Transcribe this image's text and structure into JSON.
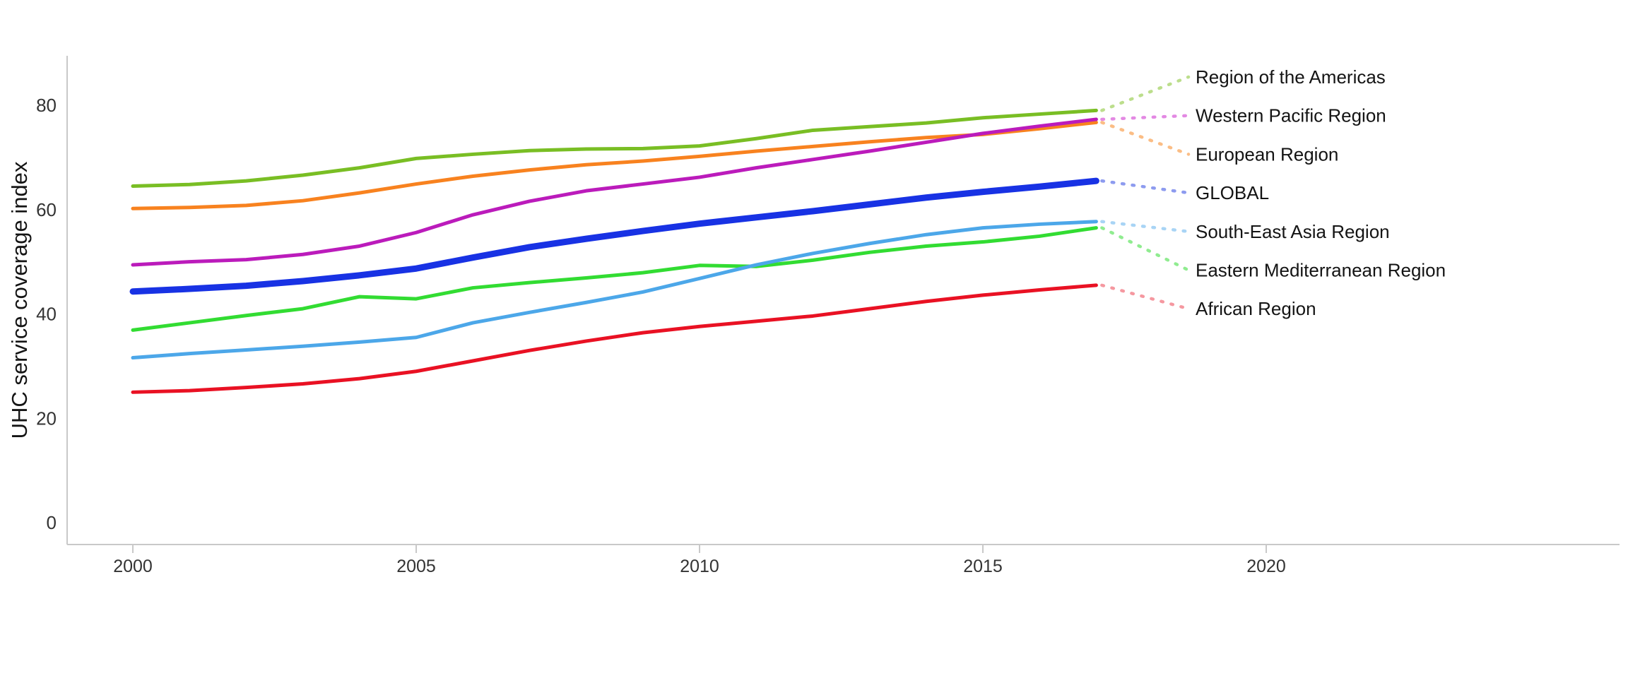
{
  "page": {
    "background": "#ffffff"
  },
  "chart_data": {
    "type": "line",
    "title": "",
    "xlabel": "",
    "ylabel": "UHC service coverage index",
    "x": [
      2000,
      2001,
      2002,
      2003,
      2004,
      2005,
      2006,
      2007,
      2008,
      2009,
      2010,
      2011,
      2012,
      2013,
      2014,
      2015,
      2016,
      2017
    ],
    "x_ticks": [
      2000,
      2005,
      2010,
      2015,
      2020
    ],
    "y_ticks": [
      0,
      20,
      40,
      60,
      80
    ],
    "xlim": [
      1999,
      2026
    ],
    "ylim": [
      0,
      88
    ],
    "grid": false,
    "legend_position": "right-edge-leader-labels",
    "axis_color": "#c9c9c9",
    "tick_label_color": "#333333",
    "series_label_color": "#141414",
    "series": [
      {
        "name": "Region of the Americas",
        "color": "#79be24",
        "leader_color": "#bcde8c",
        "line_width": 5,
        "values": [
          64.5,
          64.8,
          65.5,
          66.6,
          68.0,
          69.8,
          70.6,
          71.3,
          71.6,
          71.7,
          72.2,
          73.6,
          75.2,
          75.9,
          76.6,
          77.6,
          78.3,
          79.0
        ]
      },
      {
        "name": "Western Pacific Region",
        "color": "#bb1bbb",
        "leader_color": "#e389e3",
        "line_width": 5,
        "values": [
          49.4,
          50.0,
          50.4,
          51.4,
          53.0,
          55.6,
          59.0,
          61.6,
          63.6,
          64.9,
          66.2,
          68.0,
          69.6,
          71.2,
          72.9,
          74.6,
          76.0,
          77.3
        ]
      },
      {
        "name": "European Region",
        "color": "#f8821f",
        "leader_color": "#fbbd85",
        "line_width": 5,
        "values": [
          60.2,
          60.4,
          60.8,
          61.7,
          63.2,
          64.9,
          66.4,
          67.6,
          68.6,
          69.3,
          70.2,
          71.2,
          72.1,
          73.0,
          73.8,
          74.4,
          75.5,
          76.7
        ]
      },
      {
        "name": "GLOBAL",
        "color": "#1832e4",
        "leader_color": "#8d9bef",
        "line_width": 9,
        "values": [
          44.3,
          44.8,
          45.4,
          46.3,
          47.4,
          48.7,
          50.8,
          52.8,
          54.4,
          55.9,
          57.3,
          58.5,
          59.7,
          61.0,
          62.3,
          63.4,
          64.4,
          65.5
        ]
      },
      {
        "name": "South-East Asia Region",
        "color": "#4ca7e9",
        "leader_color": "#a8d4f5",
        "line_width": 5,
        "values": [
          31.6,
          32.4,
          33.1,
          33.8,
          34.6,
          35.5,
          38.3,
          40.3,
          42.2,
          44.2,
          46.8,
          49.4,
          51.6,
          53.5,
          55.2,
          56.5,
          57.2,
          57.7
        ]
      },
      {
        "name": "Eastern Mediterranean Region",
        "color": "#32dc32",
        "leader_color": "#90ec90",
        "line_width": 5,
        "values": [
          36.9,
          38.3,
          39.7,
          41.0,
          43.3,
          42.9,
          45.0,
          46.0,
          46.9,
          47.9,
          49.3,
          49.1,
          50.3,
          51.8,
          53.0,
          53.8,
          54.9,
          56.5
        ]
      },
      {
        "name": "African Region",
        "color": "#e91123",
        "leader_color": "#f598a0",
        "line_width": 5,
        "values": [
          25.0,
          25.3,
          25.9,
          26.6,
          27.6,
          29.0,
          31.0,
          33.0,
          34.8,
          36.4,
          37.6,
          38.6,
          39.6,
          41.0,
          42.4,
          43.6,
          44.6,
          45.5
        ]
      }
    ]
  }
}
